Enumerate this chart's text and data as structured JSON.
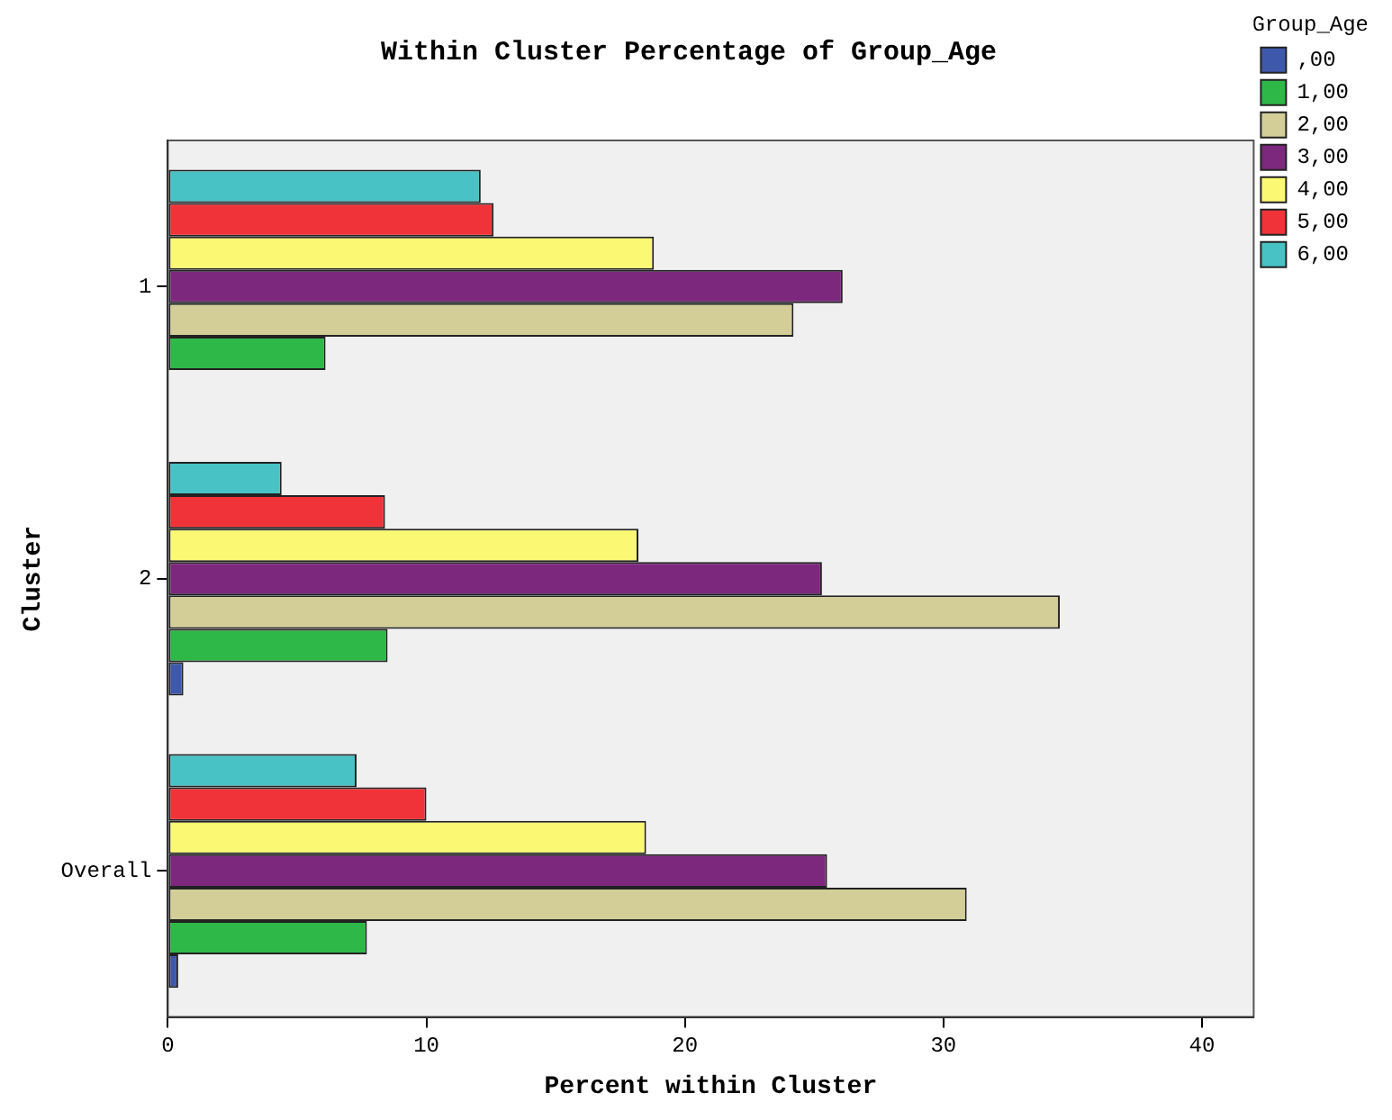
{
  "chart_data": {
    "type": "bar",
    "orientation": "horizontal",
    "title": "Within Cluster Percentage of Group_Age",
    "xlabel": "Percent within Cluster",
    "ylabel": "Cluster",
    "legend_title": "Group_Age",
    "categories": [
      "1",
      "2",
      "Overall"
    ],
    "series": [
      {
        "name": ",00",
        "color": "#3e58ac",
        "values": [
          0,
          0.6,
          0.4
        ]
      },
      {
        "name": "1,00",
        "color": "#2eb848",
        "values": [
          6.1,
          8.5,
          7.7
        ]
      },
      {
        "name": "2,00",
        "color": "#d3ce97",
        "values": [
          24.2,
          34.5,
          30.9
        ]
      },
      {
        "name": "3,00",
        "color": "#7c287d",
        "values": [
          26.1,
          25.3,
          25.5
        ]
      },
      {
        "name": "4,00",
        "color": "#fbf873",
        "values": [
          18.8,
          18.2,
          18.5
        ]
      },
      {
        "name": "5,00",
        "color": "#ef3338",
        "values": [
          12.6,
          8.4,
          10.0
        ]
      },
      {
        "name": "6,00",
        "color": "#48c2c5",
        "values": [
          12.1,
          4.4,
          7.3
        ]
      }
    ],
    "xlim": [
      0,
      42
    ],
    "xticks": [
      0,
      10,
      20,
      30,
      40
    ],
    "grid": false,
    "legend": "top right"
  }
}
